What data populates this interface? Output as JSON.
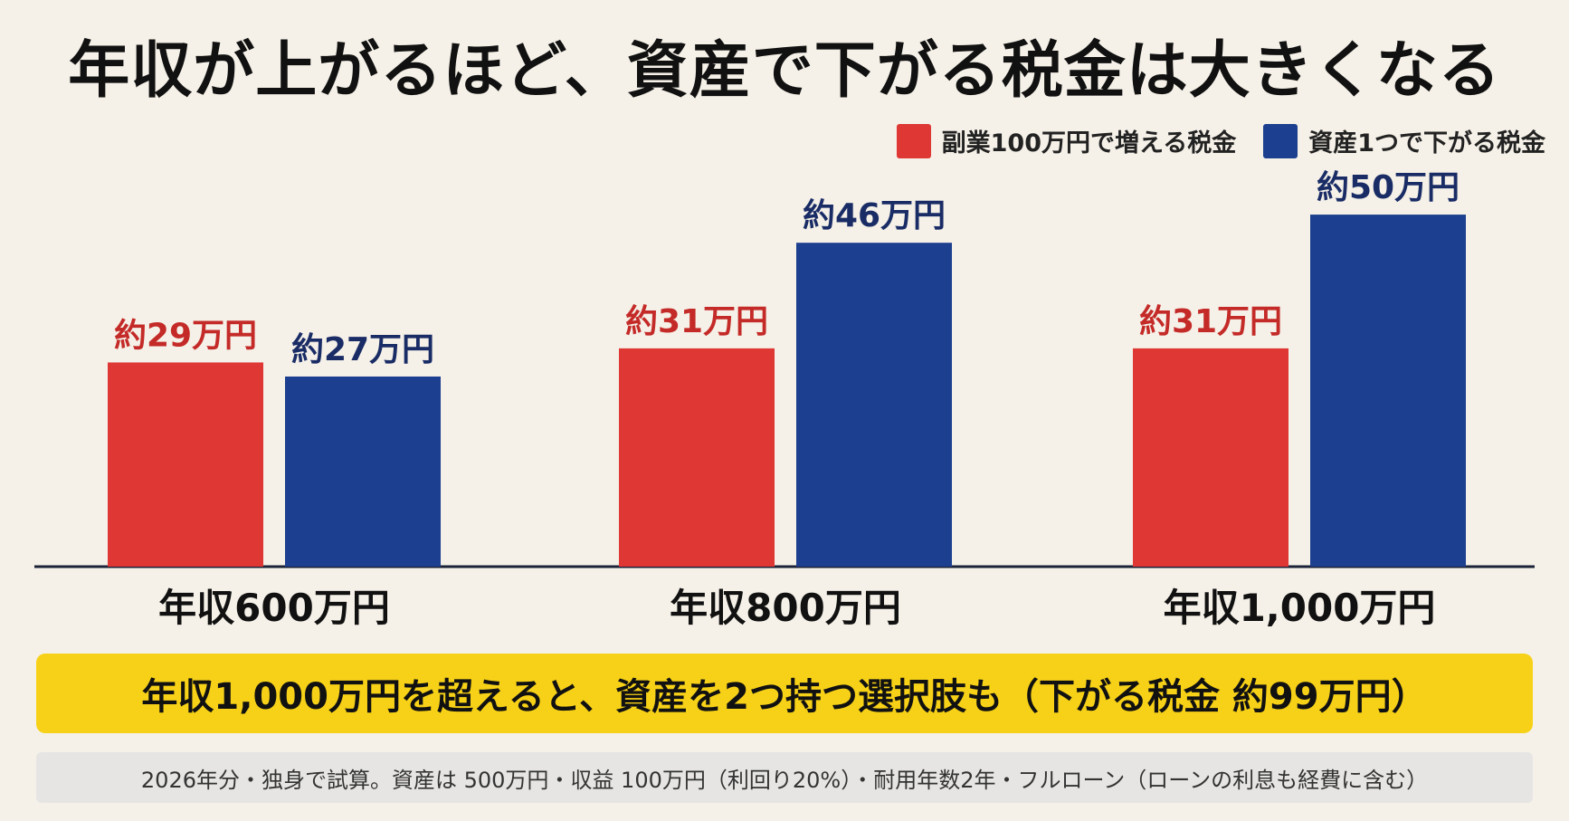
{
  "title": "年収が上がるほど、資産で下がる税金は大きくなる",
  "colors": {
    "red": "#de3734",
    "blue": "#1c3f8f",
    "axis": "#1a2238",
    "highlight": "#f7d117"
  },
  "chart_data": {
    "type": "bar",
    "categories": [
      "年収600万円",
      "年収800万円",
      "年収1,000万円"
    ],
    "series": [
      {
        "name": "副業100万円で増える税金",
        "values": [
          29,
          31,
          31
        ],
        "labels": [
          "約29万円",
          "約31万円",
          "約31万円"
        ],
        "color": "#de3734"
      },
      {
        "name": "資産1つで下がる税金",
        "values": [
          27,
          46,
          50
        ],
        "labels": [
          "約27万円",
          "約46万円",
          "約50万円"
        ],
        "color": "#1c3f8f"
      }
    ],
    "ylim": [
      0,
      56
    ],
    "legend": "top-right",
    "grid": false
  },
  "highlight_text": "年収1,000万円を超えると、資産を2つ持つ選択肢も（下がる税金 約99万円）",
  "note_text": "2026年分・独身で試算。資産は 500万円・収益 100万円（利回り20%）・耐用年数2年・フルローン（ローンの利息も経費に含む）"
}
